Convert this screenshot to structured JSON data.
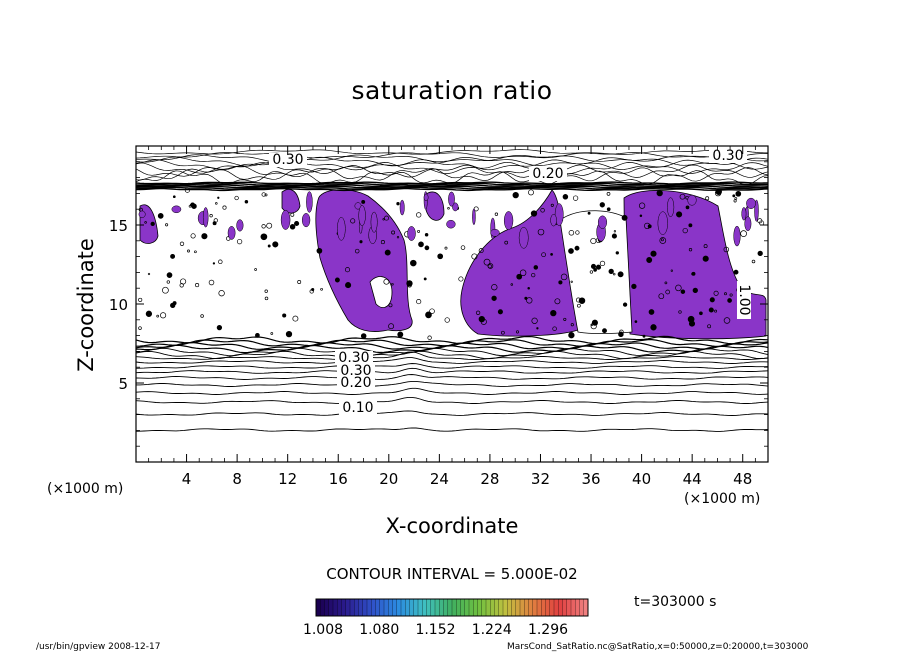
{
  "chart_data": {
    "type": "heatmap",
    "title": "saturation ratio",
    "xlabel": "X-coordinate",
    "ylabel": "Z-coordinate",
    "x_unit_label": "(×1000 m)",
    "xlim": [
      0,
      50
    ],
    "ylim": [
      0,
      20
    ],
    "x_ticks": [
      "4",
      "8",
      "12",
      "16",
      "20",
      "24",
      "28",
      "32",
      "36",
      "40",
      "44",
      "48"
    ],
    "y_ticks": [
      "5",
      "10",
      "15"
    ],
    "contour_labels": [
      "0.30",
      "0.20",
      "0.30",
      "1.00",
      "0.30",
      "0.30",
      "0.20",
      "0.10"
    ],
    "contour_interval": "CONTOUR INTERVAL = 5.000E-02",
    "time": "t=303000 s",
    "colorbar_ticks": [
      "1.008",
      "1.080",
      "1.152",
      "1.224",
      "1.296"
    ],
    "colorbar_colors": [
      "#1a0050",
      "#2a1a8c",
      "#3050c8",
      "#2c8ce0",
      "#40c0c0",
      "#40b060",
      "#70c040",
      "#c0c040",
      "#e08040",
      "#e04040",
      "#f08080"
    ],
    "fill_color": "#8a35c8",
    "supersaturated_regions": [
      {
        "x": [
          14.5,
          20.5
        ],
        "z": [
          8.0,
          17.0
        ]
      },
      {
        "x": [
          25.0,
          35.0
        ],
        "z": [
          7.8,
          17.0
        ]
      },
      {
        "x": [
          39.0,
          49.5
        ],
        "z": [
          7.8,
          17.0
        ]
      }
    ],
    "grid": false,
    "legend": "colorbar-bottom"
  },
  "footer": {
    "left": "/usr/bin/gpview   2008-12-17",
    "right": "MarsCond_SatRatio.nc@SatRatio,x=0:50000,z=0:20000,t=303000"
  }
}
